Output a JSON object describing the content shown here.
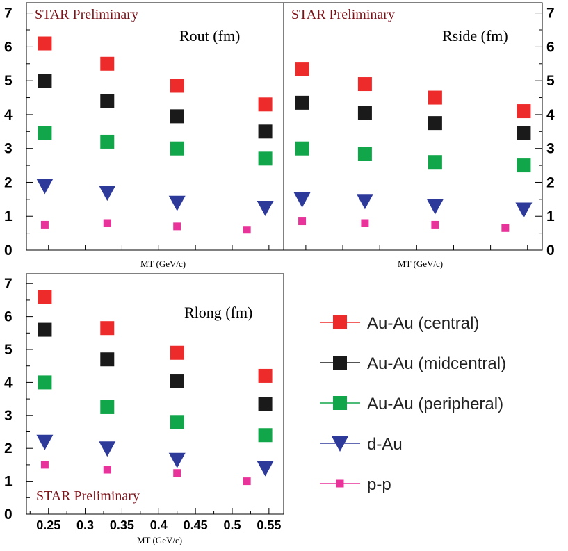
{
  "legend": [
    {
      "name": "Au-Au (central)",
      "color": "#ee2b2b",
      "marker": "square"
    },
    {
      "name": "Au-Au (midcentral)",
      "color": "#1a1a1a",
      "marker": "square"
    },
    {
      "name": "Au-Au (peripheral)",
      "color": "#12a64a",
      "marker": "square"
    },
    {
      "name": "d-Au",
      "color": "#2e3a9a",
      "marker": "triangle-down"
    },
    {
      "name": "p-p",
      "color": "#e8339a",
      "marker": "small-square"
    }
  ],
  "chart_data": [
    {
      "type": "scatter",
      "title": "Rout (fm)",
      "annotation": "STAR Preliminary",
      "xlabel": "MT (GeV/c)",
      "ylabel": "",
      "xlim": [
        0.22,
        0.57
      ],
      "ylim": [
        0,
        7.3
      ],
      "yticks": [
        "0",
        "1",
        "2",
        "3",
        "4",
        "5",
        "6",
        "7"
      ],
      "xticks": [],
      "series": [
        {
          "name": "Au-Au (central)",
          "x": [
            0.245,
            0.33,
            0.425,
            0.545
          ],
          "y": [
            6.1,
            5.5,
            4.85,
            4.3
          ]
        },
        {
          "name": "Au-Au (midcentral)",
          "x": [
            0.245,
            0.33,
            0.425,
            0.545
          ],
          "y": [
            5.0,
            4.4,
            3.95,
            3.5
          ]
        },
        {
          "name": "Au-Au (peripheral)",
          "x": [
            0.245,
            0.33,
            0.425,
            0.545
          ],
          "y": [
            3.45,
            3.2,
            3.0,
            2.7
          ]
        },
        {
          "name": "d-Au",
          "x": [
            0.245,
            0.33,
            0.425,
            0.545
          ],
          "y": [
            1.9,
            1.7,
            1.4,
            1.25
          ]
        },
        {
          "name": "p-p",
          "x": [
            0.245,
            0.33,
            0.425,
            0.52
          ],
          "y": [
            0.75,
            0.8,
            0.7,
            0.6
          ]
        }
      ]
    },
    {
      "type": "scatter",
      "title": "Rside (fm)",
      "annotation": "STAR Preliminary",
      "xlabel": "MT (GeV/c)",
      "ylabel": "",
      "xlim": [
        0.22,
        0.57
      ],
      "ylim": [
        0,
        7.3
      ],
      "yticks": [
        "0",
        "1",
        "2",
        "3",
        "4",
        "5",
        "6",
        "7"
      ],
      "xticks": [],
      "series": [
        {
          "name": "Au-Au (central)",
          "x": [
            0.245,
            0.33,
            0.425,
            0.545
          ],
          "y": [
            5.35,
            4.9,
            4.5,
            4.1
          ]
        },
        {
          "name": "Au-Au (midcentral)",
          "x": [
            0.245,
            0.33,
            0.425,
            0.545
          ],
          "y": [
            4.35,
            4.05,
            3.75,
            3.45
          ]
        },
        {
          "name": "Au-Au (peripheral)",
          "x": [
            0.245,
            0.33,
            0.425,
            0.545
          ],
          "y": [
            3.0,
            2.85,
            2.6,
            2.5
          ]
        },
        {
          "name": "d-Au",
          "x": [
            0.245,
            0.33,
            0.425,
            0.545
          ],
          "y": [
            1.5,
            1.45,
            1.3,
            1.2
          ]
        },
        {
          "name": "p-p",
          "x": [
            0.245,
            0.33,
            0.425,
            0.52
          ],
          "y": [
            0.85,
            0.8,
            0.75,
            0.65
          ]
        }
      ]
    },
    {
      "type": "scatter",
      "title": "Rlong (fm)",
      "annotation": "STAR Preliminary",
      "xlabel": "MT (GeV/c)",
      "ylabel": "",
      "xlim": [
        0.22,
        0.57
      ],
      "ylim": [
        0,
        7.3
      ],
      "yticks": [
        "0",
        "1",
        "2",
        "3",
        "4",
        "5",
        "6",
        "7"
      ],
      "xticks": [
        "0.25",
        "0.3",
        "0.35",
        "0.4",
        "0.45",
        "0.5",
        "0.55"
      ],
      "series": [
        {
          "name": "Au-Au (central)",
          "x": [
            0.245,
            0.33,
            0.425,
            0.545
          ],
          "y": [
            6.6,
            5.65,
            4.9,
            4.2
          ]
        },
        {
          "name": "Au-Au (midcentral)",
          "x": [
            0.245,
            0.33,
            0.425,
            0.545
          ],
          "y": [
            5.6,
            4.7,
            4.05,
            3.35
          ]
        },
        {
          "name": "Au-Au (peripheral)",
          "x": [
            0.245,
            0.33,
            0.425,
            0.545
          ],
          "y": [
            4.0,
            3.25,
            2.8,
            2.4
          ]
        },
        {
          "name": "d-Au",
          "x": [
            0.245,
            0.33,
            0.425,
            0.545
          ],
          "y": [
            2.2,
            2.0,
            1.65,
            1.4
          ]
        },
        {
          "name": "p-p",
          "x": [
            0.245,
            0.33,
            0.425,
            0.52
          ],
          "y": [
            1.5,
            1.35,
            1.25,
            1.0
          ]
        }
      ]
    }
  ]
}
